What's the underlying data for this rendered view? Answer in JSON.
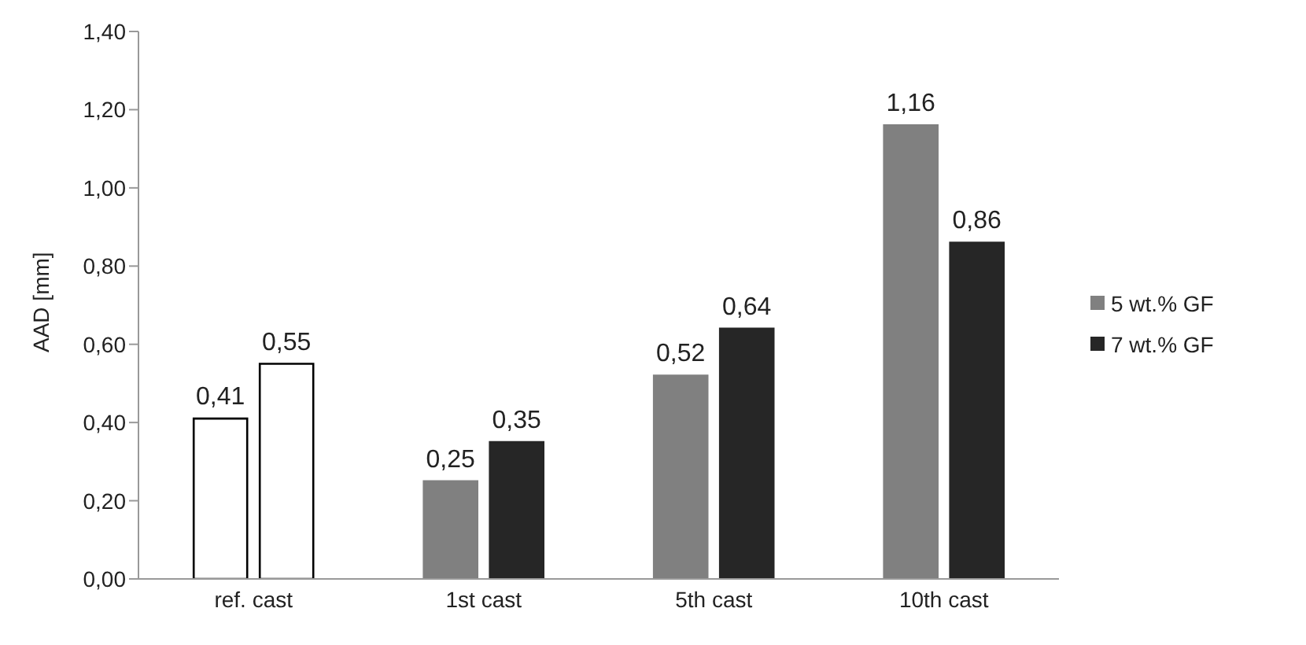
{
  "chart_data": {
    "type": "bar",
    "ylabel": "AAD [mm]",
    "categories": [
      "ref. cast",
      "1st cast",
      "5th cast",
      "10th cast"
    ],
    "series": [
      {
        "name": "5 wt.% GF",
        "color": "#808080",
        "colors": [
          "#ffffff",
          "#808080",
          "#808080",
          "#808080"
        ],
        "values": [
          0.41,
          0.25,
          0.52,
          1.16
        ],
        "value_labels": [
          "0,41",
          "0,25",
          "0,52",
          "1,16"
        ]
      },
      {
        "name": "7 wt.% GF",
        "color": "#262626",
        "colors": [
          "#ffffff",
          "#262626",
          "#262626",
          "#262626"
        ],
        "values": [
          0.55,
          0.35,
          0.64,
          0.86
        ],
        "value_labels": [
          "0,55",
          "0,35",
          "0,64",
          "0,86"
        ]
      }
    ],
    "ylim": [
      0,
      1.4
    ],
    "yticks": [
      {
        "value": 0,
        "label": "0,00"
      },
      {
        "value": 0.2,
        "label": "0,20"
      },
      {
        "value": 0.4,
        "label": "0,40"
      },
      {
        "value": 0.6,
        "label": "0,60"
      },
      {
        "value": 0.8,
        "label": "0,80"
      },
      {
        "value": 1,
        "label": "1,00"
      },
      {
        "value": 1.2,
        "label": "1,20"
      },
      {
        "value": 1.4,
        "label": "1,40"
      }
    ],
    "grid": false,
    "legend": "right"
  }
}
